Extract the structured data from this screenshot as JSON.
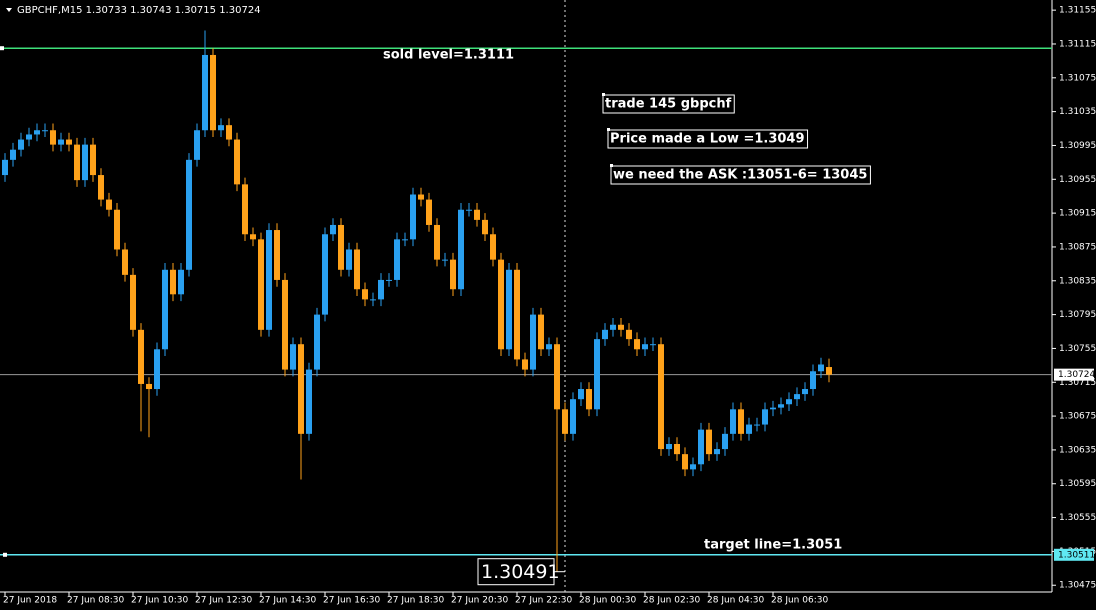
{
  "chart_data": {
    "type": "candlestick",
    "title": "GBPCHF,M15  1.30733 1.30743 1.30715 1.30724",
    "categories": [
      "27 Jun 2018",
      null,
      null,
      null,
      null,
      null,
      null,
      null,
      "27 Jun 08:30",
      null,
      null,
      null,
      null,
      null,
      null,
      null,
      "27 Jun 10:30",
      null,
      null,
      null,
      null,
      null,
      null,
      null,
      "27 Jun 12:30",
      null,
      null,
      null,
      null,
      null,
      null,
      null,
      "27 Jun 14:30",
      null,
      null,
      null,
      null,
      null,
      null,
      null,
      "27 Jun 16:30",
      null,
      null,
      null,
      null,
      null,
      null,
      null,
      "27 Jun 18:30",
      null,
      null,
      null,
      null,
      null,
      null,
      null,
      "27 Jun 20:30",
      null,
      null,
      null,
      null,
      null,
      null,
      null,
      "27 Jun 22:30",
      null,
      null,
      null,
      null,
      null,
      null,
      null,
      "28 Jun 00:30",
      null,
      null,
      null,
      null,
      null,
      null,
      null,
      "28 Jun 02:30",
      null,
      null,
      null,
      null,
      null,
      null,
      null,
      "28 Jun 04:30",
      null,
      null,
      null,
      null,
      null,
      null,
      null,
      "28 Jun 06:30",
      null,
      null,
      null,
      null,
      null,
      null,
      null
    ],
    "open": [
      1.3096,
      1.30978,
      1.3099,
      1.31002,
      1.31008,
      1.31013,
      1.31013,
      1.30996,
      1.31002,
      1.30996,
      1.30954,
      1.30996,
      1.3096,
      1.30931,
      1.30919,
      1.30872,
      1.30842,
      1.30777,
      1.30713,
      1.30707,
      1.30754,
      1.30848,
      1.30819,
      1.30848,
      1.30978,
      1.31013,
      1.31102,
      1.31013,
      1.31019,
      1.31002,
      1.30949,
      1.3089,
      1.30884,
      1.30777,
      1.30895,
      1.30836,
      1.3073,
      1.3076,
      1.30654,
      1.3073,
      1.30795,
      1.3089,
      1.30901,
      1.30848,
      1.30872,
      1.30825,
      1.30813,
      1.30813,
      1.30836,
      1.30836,
      1.30884,
      1.30884,
      1.30937,
      1.30931,
      1.30901,
      1.3086,
      1.3086,
      1.30825,
      1.30919,
      1.30919,
      1.30907,
      1.3089,
      1.3086,
      1.30754,
      1.30848,
      1.30742,
      1.3073,
      1.30795,
      1.30754,
      1.3076,
      1.30683,
      1.30654,
      1.30695,
      1.30707,
      1.30683,
      1.30766,
      1.30777,
      1.30783,
      1.30777,
      1.30766,
      1.30754,
      1.3076,
      1.3076,
      1.30636,
      1.30642,
      1.3063,
      1.30612,
      1.30618,
      1.30659,
      1.3063,
      1.30636,
      1.30654,
      1.30683,
      1.30654,
      1.30665,
      1.30665,
      1.30683,
      1.30685,
      1.30689,
      1.30695,
      1.30701,
      1.30707,
      1.30728,
      1.30733
    ],
    "high": [
      1.30986,
      1.30998,
      1.3101,
      1.31016,
      1.31021,
      1.31021,
      1.31021,
      1.3101,
      1.3101,
      1.31004,
      1.31004,
      1.31004,
      1.30968,
      1.30939,
      1.30927,
      1.3088,
      1.3085,
      1.30785,
      1.30721,
      1.30762,
      1.30856,
      1.30856,
      1.30856,
      1.30986,
      1.31021,
      1.31131,
      1.3111,
      1.31027,
      1.31027,
      1.3101,
      1.30957,
      1.30898,
      1.30892,
      1.30903,
      1.30903,
      1.30844,
      1.30768,
      1.30768,
      1.30738,
      1.30803,
      1.30898,
      1.30909,
      1.30909,
      1.3088,
      1.3088,
      1.30833,
      1.30821,
      1.30844,
      1.30844,
      1.30892,
      1.30892,
      1.30945,
      1.30945,
      1.30939,
      1.30909,
      1.30868,
      1.30868,
      1.30927,
      1.30927,
      1.30927,
      1.30915,
      1.30898,
      1.30868,
      1.30856,
      1.30856,
      1.3075,
      1.30803,
      1.30803,
      1.30768,
      1.30768,
      1.30691,
      1.30703,
      1.30715,
      1.30715,
      1.30774,
      1.30785,
      1.30791,
      1.30791,
      1.30785,
      1.30774,
      1.30768,
      1.30768,
      1.30768,
      1.3065,
      1.3065,
      1.30638,
      1.30626,
      1.30667,
      1.30667,
      1.30644,
      1.30662,
      1.30691,
      1.30691,
      1.30673,
      1.30673,
      1.30691,
      1.30693,
      1.30697,
      1.30703,
      1.30709,
      1.30715,
      1.30736,
      1.30744,
      1.30743
    ],
    "low": [
      1.30952,
      1.3097,
      1.30982,
      1.30994,
      1.31,
      1.31005,
      1.30988,
      1.30988,
      1.30988,
      1.30946,
      1.30946,
      1.30952,
      1.30923,
      1.30911,
      1.30864,
      1.30834,
      1.30769,
      1.30657,
      1.3065,
      1.30699,
      1.30746,
      1.30811,
      1.30811,
      1.3084,
      1.3097,
      1.31005,
      1.31005,
      1.31005,
      1.30994,
      1.30941,
      1.30882,
      1.30876,
      1.30769,
      1.30769,
      1.30828,
      1.30722,
      1.30722,
      1.306,
      1.30646,
      1.30722,
      1.30787,
      1.30882,
      1.3084,
      1.3084,
      1.30817,
      1.30805,
      1.30805,
      1.30805,
      1.30828,
      1.30828,
      1.30876,
      1.30876,
      1.30923,
      1.30893,
      1.30852,
      1.30852,
      1.30817,
      1.30817,
      1.30911,
      1.30899,
      1.30882,
      1.30852,
      1.30746,
      1.30746,
      1.30734,
      1.30722,
      1.30722,
      1.30746,
      1.30746,
      1.30491,
      1.30646,
      1.30646,
      1.30687,
      1.30675,
      1.30675,
      1.30758,
      1.30769,
      1.30769,
      1.30758,
      1.30746,
      1.30746,
      1.30752,
      1.30628,
      1.30628,
      1.30622,
      1.30604,
      1.30604,
      1.3061,
      1.30622,
      1.30622,
      1.30628,
      1.30646,
      1.30646,
      1.30646,
      1.30657,
      1.30657,
      1.30675,
      1.30677,
      1.30681,
      1.30687,
      1.30693,
      1.30699,
      1.3072,
      1.30715
    ],
    "close": [
      1.30978,
      1.3099,
      1.31002,
      1.31008,
      1.31013,
      1.31013,
      1.30996,
      1.31002,
      1.30996,
      1.30954,
      1.30996,
      1.3096,
      1.30931,
      1.30919,
      1.30872,
      1.30842,
      1.30777,
      1.30713,
      1.30707,
      1.30754,
      1.30848,
      1.30819,
      1.30848,
      1.30978,
      1.31013,
      1.31102,
      1.31013,
      1.31019,
      1.31002,
      1.30949,
      1.3089,
      1.30884,
      1.30777,
      1.30895,
      1.30836,
      1.3073,
      1.3076,
      1.30654,
      1.3073,
      1.30795,
      1.3089,
      1.30901,
      1.30848,
      1.30872,
      1.30825,
      1.30813,
      1.30813,
      1.30836,
      1.30836,
      1.30884,
      1.30884,
      1.30937,
      1.30931,
      1.30901,
      1.3086,
      1.3086,
      1.30825,
      1.30919,
      1.30919,
      1.30907,
      1.3089,
      1.3086,
      1.30754,
      1.30848,
      1.30742,
      1.3073,
      1.30795,
      1.30754,
      1.3076,
      1.30683,
      1.30654,
      1.30695,
      1.30707,
      1.30683,
      1.30766,
      1.30777,
      1.30783,
      1.30777,
      1.30766,
      1.30754,
      1.3076,
      1.3076,
      1.30636,
      1.30642,
      1.3063,
      1.30612,
      1.30618,
      1.30659,
      1.3063,
      1.30636,
      1.30654,
      1.30683,
      1.30654,
      1.30665,
      1.30665,
      1.30683,
      1.30685,
      1.30689,
      1.30695,
      1.30701,
      1.30707,
      1.30728,
      1.30736,
      1.30724
    ],
    "up_color": "#2aa0f0",
    "down_color": "#ffa21a",
    "ylim": [
      1.30467,
      1.31167
    ],
    "yticks": [
      1.31155,
      1.31115,
      1.31075,
      1.31035,
      1.30995,
      1.30955,
      1.30915,
      1.30875,
      1.30835,
      1.30795,
      1.30755,
      1.30715,
      1.30675,
      1.30635,
      1.30595,
      1.30555,
      1.30515,
      1.30475
    ],
    "hlines": [
      {
        "name": "sold level=1.3111",
        "value": 1.3111,
        "color": "#3ee07a"
      },
      {
        "name": "target line=1.3051",
        "value": 1.30511,
        "color": "#5fe8f2"
      },
      {
        "value": 1.30724,
        "color": "#9a9a9a"
      }
    ],
    "crosshair": {
      "index": 70,
      "value": 1.30491
    },
    "annotations": [
      "trade 145 gbpchf",
      "Price made a Low =1.3049",
      "we need the ASK :13051-6= 13045"
    ]
  }
}
